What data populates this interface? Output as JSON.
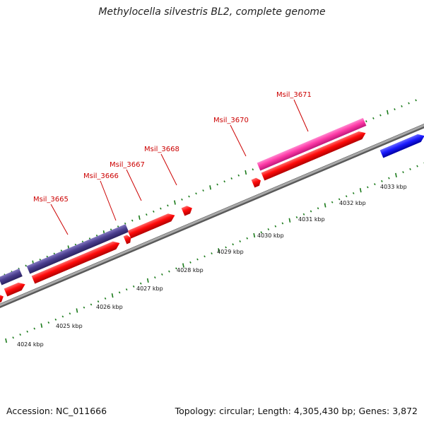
{
  "title": "Methylocella silvestris BL2, complete genome",
  "footer": {
    "accession": "Accession: NC_011666",
    "summary": "Topology: circular; Length: 4,305,430 bp; Genes: 3,872"
  },
  "colors": {
    "backbone": "#8a8a8a",
    "ticks": "#1a7a1a",
    "gene_red": "#ff0a0a",
    "gene_navy": "#4b3f8f",
    "gene_pink": "#ff3ca8",
    "gene_blue": "#1a1aff",
    "label": "#cc0000"
  },
  "scale_labels": [
    "4024 kbp",
    "4025 kbp",
    "4026 kbp",
    "4027 kbp",
    "4028 kbp",
    "4029 kbp",
    "4030 kbp",
    "4031 kbp",
    "4032 kbp",
    "4033 kbp"
  ],
  "gene_labels": [
    "Msil_3665",
    "Msil_3666",
    "Msil_3667",
    "Msil_3668",
    "Msil_3670",
    "Msil_3671"
  ]
}
